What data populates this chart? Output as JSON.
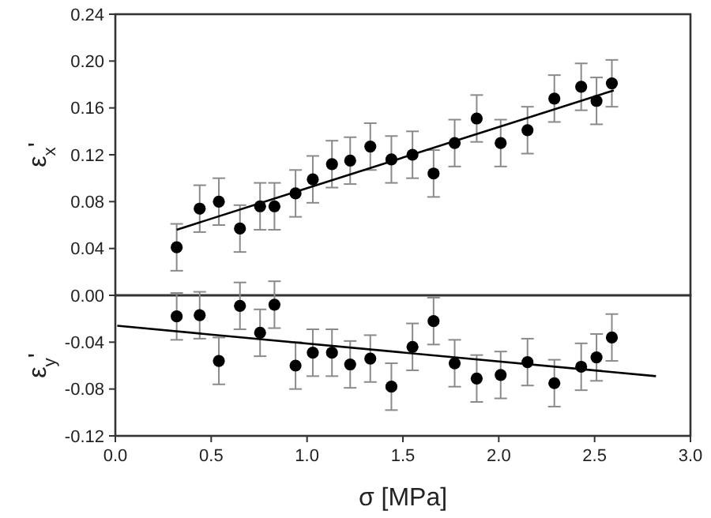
{
  "chart_data": [
    {
      "type": "scatter",
      "ylabel": "ε$_{x}$'",
      "xlim": [
        0,
        3
      ],
      "ylim": [
        0,
        0.24
      ],
      "tick_labels": "y",
      "yticks": [
        {
          "value": 0.04,
          "label": "0.04"
        },
        {
          "value": 0.08,
          "label": "0.08"
        },
        {
          "value": 0.12,
          "label": "0.12"
        },
        {
          "value": 0.16,
          "label": "0.16"
        },
        {
          "value": 0.2,
          "label": "0.20"
        },
        {
          "value": 0.24,
          "label": "0.24"
        }
      ],
      "x": [
        0.32,
        0.44,
        0.54,
        0.65,
        0.755,
        0.83,
        0.94,
        1.03,
        1.13,
        1.225,
        1.33,
        1.44,
        1.55,
        1.66,
        1.77,
        1.885,
        2.01,
        2.15,
        2.29,
        2.43,
        2.51,
        2.59
      ],
      "series": [
        {
          "marker": "circle",
          "color": "#000000",
          "values": [
            0.041,
            0.074,
            0.08,
            0.057,
            0.076,
            0.076,
            0.087,
            0.099,
            0.112,
            0.115,
            0.127,
            0.116,
            0.12,
            0.104,
            0.13,
            0.151,
            0.13,
            0.141,
            0.168,
            0.178,
            0.166,
            0.181
          ],
          "errors": [
            0.02,
            0.02,
            0.02,
            0.02,
            0.02,
            0.02,
            0.02,
            0.02,
            0.02,
            0.02,
            0.02,
            0.02,
            0.02,
            0.02,
            0.02,
            0.02,
            0.02,
            0.02,
            0.02,
            0.02,
            0.02,
            0.02
          ]
        },
        {
          "type": "line",
          "color": "#000000",
          "x": [
            0.32,
            2.6
          ],
          "values": [
            0.056,
            0.175
          ]
        }
      ]
    },
    {
      "type": "scatter",
      "ylabel": "ε$_{y}$'",
      "xlabel": "σ [MPa]",
      "xlim": [
        0,
        3
      ],
      "ylim": [
        -0.12,
        0
      ],
      "xticks": [
        {
          "value": 0,
          "label": "0.0"
        },
        {
          "value": 0.5,
          "label": "0.5"
        },
        {
          "value": 1,
          "label": "1.0"
        },
        {
          "value": 1.5,
          "label": "1.5"
        },
        {
          "value": 2,
          "label": "2.0"
        },
        {
          "value": 2.5,
          "label": "2.5"
        },
        {
          "value": 3,
          "label": "3.0"
        }
      ],
      "yticks": [
        {
          "value": -0.12,
          "label": "-0.12"
        },
        {
          "value": -0.08,
          "label": "-0.08"
        },
        {
          "value": -0.04,
          "label": "-0.04"
        },
        {
          "value": 0,
          "label": "0.00"
        }
      ],
      "x": [
        0.32,
        0.44,
        0.54,
        0.65,
        0.755,
        0.83,
        0.94,
        1.03,
        1.13,
        1.225,
        1.33,
        1.44,
        1.55,
        1.66,
        1.77,
        1.885,
        2.01,
        2.15,
        2.29,
        2.43,
        2.51,
        2.59
      ],
      "series": [
        {
          "marker": "circle",
          "color": "#000000",
          "values": [
            -0.018,
            -0.017,
            -0.056,
            -0.009,
            -0.032,
            -0.008,
            -0.06,
            -0.049,
            -0.049,
            -0.059,
            -0.054,
            -0.078,
            -0.044,
            -0.022,
            -0.058,
            -0.071,
            -0.068,
            -0.057,
            -0.075,
            -0.061,
            -0.053,
            -0.036
          ],
          "errors": [
            0.02,
            0.02,
            0.02,
            0.02,
            0.02,
            0.02,
            0.02,
            0.02,
            0.02,
            0.02,
            0.02,
            0.02,
            0.02,
            0.02,
            0.02,
            0.02,
            0.02,
            0.02,
            0.02,
            0.02,
            0.02,
            0.02
          ]
        },
        {
          "type": "line",
          "color": "#000000",
          "x": [
            0.01,
            2.82
          ],
          "values": [
            -0.026,
            -0.069
          ]
        }
      ]
    }
  ]
}
